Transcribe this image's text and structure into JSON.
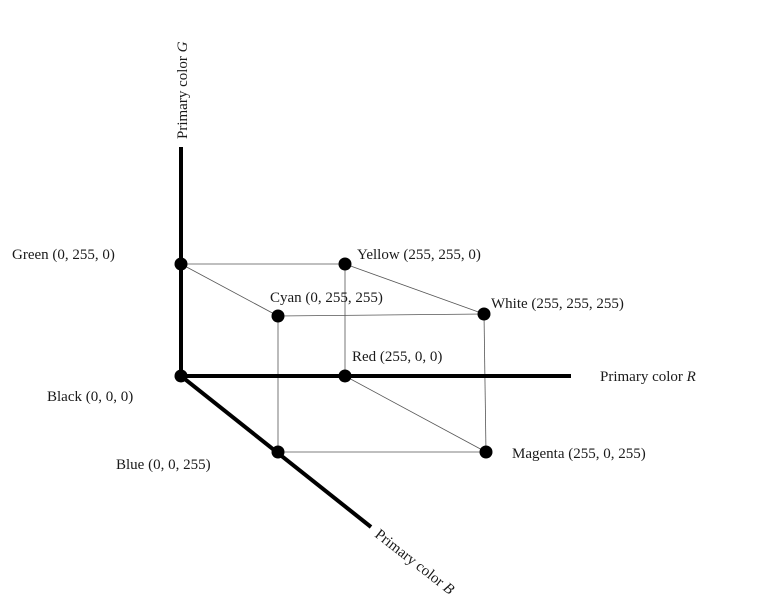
{
  "axes": {
    "r": {
      "prefix": "Primary color ",
      "letter": "R"
    },
    "g": {
      "prefix": "Primary color ",
      "letter": "G"
    },
    "b": {
      "prefix": "Primary color ",
      "letter": "B"
    }
  },
  "vertices": {
    "black": {
      "label": "Black (0, 0, 0)",
      "rgb": [
        0,
        0,
        0
      ]
    },
    "red": {
      "label": "Red (255, 0, 0)",
      "rgb": [
        255,
        0,
        0
      ]
    },
    "green": {
      "label": "Green (0, 255, 0)",
      "rgb": [
        0,
        255,
        0
      ]
    },
    "blue": {
      "label": "Blue (0, 0, 255)",
      "rgb": [
        0,
        0,
        255
      ]
    },
    "yellow": {
      "label": "Yellow (255, 255, 0)",
      "rgb": [
        255,
        255,
        0
      ]
    },
    "cyan": {
      "label": "Cyan (0, 255, 255)",
      "rgb": [
        0,
        255,
        255
      ]
    },
    "magenta": {
      "label": "Magenta (255, 0, 255)",
      "rgb": [
        255,
        0,
        255
      ]
    },
    "white": {
      "label": "White (255, 255, 255)",
      "rgb": [
        255,
        255,
        255
      ]
    }
  },
  "colors": {
    "axis": "#000000",
    "edge": "#555555",
    "vertex": "#000000",
    "text": "#1a1a1a"
  }
}
